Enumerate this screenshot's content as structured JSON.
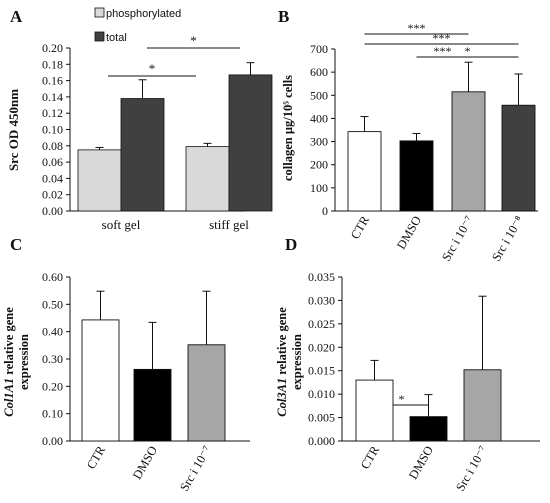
{
  "chart_data": [
    {
      "type": "bar",
      "panel_label": "A",
      "ylabel": "Src OD 450nm",
      "ylim": [
        0,
        0.2
      ],
      "yticks": [
        "0.00",
        "0.02",
        "0.04",
        "0.06",
        "0.08",
        "0.10",
        "0.12",
        "0.14",
        "0.16",
        "0.18",
        "0.20"
      ],
      "categories": [
        "soft gel",
        "stiff gel"
      ],
      "legend": {
        "placement": "top",
        "entries": [
          "phosphorylated",
          "total"
        ]
      },
      "series": [
        {
          "name": "phosphorylated",
          "color": "#d9d9d9",
          "values": [
            0.075,
            0.079
          ],
          "errors": [
            0.003,
            0.004
          ]
        },
        {
          "name": "total",
          "color": "#404040",
          "values": [
            0.138,
            0.167
          ],
          "errors": [
            0.023,
            0.015
          ]
        }
      ],
      "significance": [
        {
          "label": "*",
          "from": [
            "soft gel",
            "phosphorylated"
          ],
          "to": [
            "stiff gel",
            "phosphorylated"
          ]
        },
        {
          "label": "*",
          "from": [
            "soft gel",
            "total"
          ],
          "to": [
            "stiff gel",
            "total"
          ]
        }
      ],
      "grid": false
    },
    {
      "type": "bar",
      "panel_label": "B",
      "ylabel": "collagen µg/10⁵ cells",
      "ylim": [
        0,
        700
      ],
      "yticks": [
        "0",
        "100",
        "200",
        "300",
        "400",
        "500",
        "600",
        "700"
      ],
      "categories": [
        "CTR",
        "DMSO",
        "Src i 10⁻⁷",
        "Src i 10⁻⁸"
      ],
      "colors": [
        "#ffffff",
        "#000000",
        "#a6a6a6",
        "#404040"
      ],
      "values": [
        343,
        303,
        515,
        457
      ],
      "errors": [
        65,
        32,
        128,
        135
      ],
      "significance": [
        {
          "label": "***",
          "from": "CTR",
          "to": "Src i 10⁻⁷"
        },
        {
          "label": "***",
          "from": "CTR",
          "to": "Src i 10⁻⁸"
        },
        {
          "label": "*",
          "from": "DMSO",
          "to": "Src i 10⁻⁸"
        },
        {
          "label": "***",
          "from": "DMSO",
          "to": "Src i 10⁻⁷"
        }
      ],
      "grid": false
    },
    {
      "type": "bar",
      "panel_label": "C",
      "ylabel_italic": "Col1A1",
      "ylabel_rest": " relative gene",
      "ylabel_line2": "expression",
      "ylim": [
        0,
        0.6
      ],
      "yticks": [
        "0.00",
        "0.10",
        "0.20",
        "0.30",
        "0.40",
        "0.50",
        "0.60"
      ],
      "categories": [
        "CTR",
        "DMSO",
        "Src i 10⁻⁷"
      ],
      "colors": [
        "#ffffff",
        "#000000",
        "#a6a6a6"
      ],
      "values": [
        0.443,
        0.262,
        0.352
      ],
      "errors": [
        0.105,
        0.172,
        0.196
      ],
      "significance": [],
      "grid": false
    },
    {
      "type": "bar",
      "panel_label": "D",
      "ylabel_italic": "Col3A1",
      "ylabel_rest": " relative gene",
      "ylabel_line2": "expression",
      "ylim": [
        0,
        0.035
      ],
      "yticks": [
        "0.000",
        "0.005",
        "0.010",
        "0.015",
        "0.020",
        "0.025",
        "0.030",
        "0.035"
      ],
      "categories": [
        "CTR",
        "DMSO",
        "Src i 10⁻⁷"
      ],
      "colors": [
        "#ffffff",
        "#000000",
        "#a6a6a6"
      ],
      "values": [
        0.013,
        0.0052,
        0.0152
      ],
      "errors": [
        0.0042,
        0.0047,
        0.0157
      ],
      "significance": [
        {
          "label": "*",
          "from": "CTR",
          "to": "DMSO"
        }
      ],
      "grid": false
    }
  ]
}
